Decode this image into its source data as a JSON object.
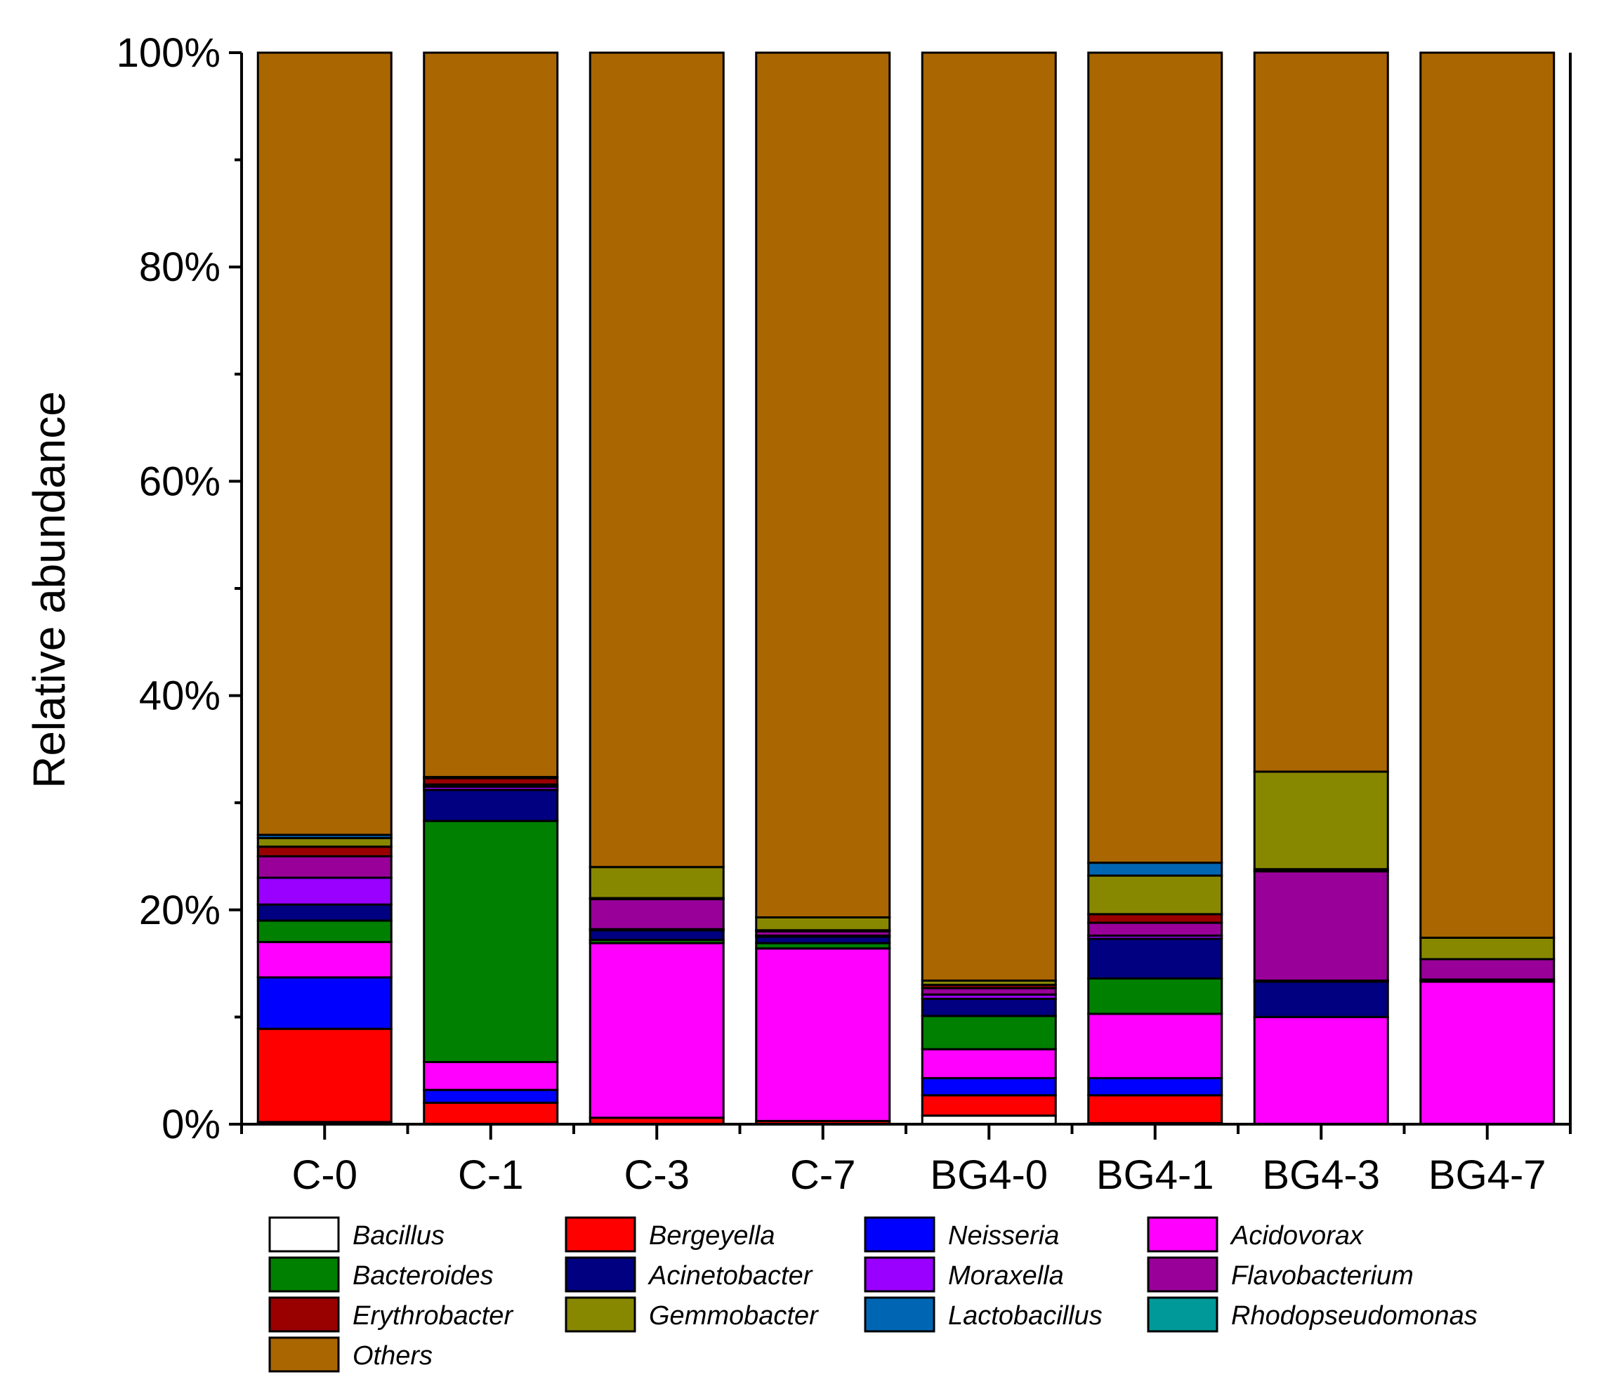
{
  "chart_data": {
    "type": "bar",
    "stacked": true,
    "title": "",
    "xlabel": "",
    "ylabel": "Relative abundance",
    "ylim": [
      0,
      100
    ],
    "y_ticks": [
      "0%",
      "20%",
      "40%",
      "60%",
      "80%",
      "100%"
    ],
    "categories": [
      "C-0",
      "C-1",
      "C-3",
      "C-7",
      "BG4-0",
      "BG4-1",
      "BG4-3",
      "BG4-7"
    ],
    "series": [
      {
        "name": "Bacillus",
        "color": "#FFFFFF",
        "values": [
          0.2,
          0.0,
          0.0,
          0.0,
          0.8,
          0.1,
          0.0,
          0.0
        ]
      },
      {
        "name": "Bergeyella",
        "color": "#FF0000",
        "values": [
          8.7,
          2.0,
          0.6,
          0.3,
          1.9,
          2.6,
          0.0,
          0.0
        ]
      },
      {
        "name": "Neisseria",
        "color": "#0000FF",
        "values": [
          4.8,
          1.2,
          0.0,
          0.0,
          1.6,
          1.6,
          0.0,
          0.0
        ]
      },
      {
        "name": "Acidovorax",
        "color": "#FF00FF",
        "values": [
          3.3,
          2.6,
          16.3,
          16.1,
          2.7,
          6.0,
          10.0,
          13.3
        ]
      },
      {
        "name": "Bacteroides",
        "color": "#008000",
        "values": [
          2.0,
          22.5,
          0.3,
          0.5,
          3.1,
          3.3,
          0.0,
          0.0
        ]
      },
      {
        "name": "Acinetobacter",
        "color": "#000080",
        "values": [
          1.5,
          2.9,
          0.9,
          0.6,
          1.6,
          3.7,
          3.3,
          0.2
        ]
      },
      {
        "name": "Moraxella",
        "color": "#9900FF",
        "values": [
          2.5,
          0.3,
          0.1,
          0.1,
          0.4,
          0.3,
          0.1,
          0.0
        ]
      },
      {
        "name": "Flavobacterium",
        "color": "#990099",
        "values": [
          2.0,
          0.2,
          2.8,
          0.4,
          0.6,
          1.2,
          10.2,
          1.9
        ]
      },
      {
        "name": "Erythrobacter",
        "color": "#990000",
        "values": [
          0.9,
          0.6,
          0.1,
          0.1,
          0.3,
          0.8,
          0.2,
          0.0
        ]
      },
      {
        "name": "Gemmobacter",
        "color": "#888800",
        "values": [
          0.8,
          0.1,
          2.9,
          1.2,
          0.4,
          3.6,
          9.1,
          2.0
        ]
      },
      {
        "name": "Lactobacillus",
        "color": "#0066B3",
        "values": [
          0.3,
          0.0,
          0.0,
          0.0,
          0.0,
          1.2,
          0.0,
          0.0
        ]
      },
      {
        "name": "Rhodopseudomonas",
        "color": "#009999",
        "values": [
          0.0,
          0.0,
          0.0,
          0.0,
          0.0,
          0.0,
          0.0,
          0.0
        ]
      },
      {
        "name": "Others",
        "color": "#AA6600",
        "values": [
          73.0,
          67.6,
          76.0,
          80.7,
          86.6,
          75.6,
          67.1,
          82.6
        ]
      }
    ],
    "legend": {
      "placement": "bottom",
      "columns": 4,
      "entries": [
        "Bacillus",
        "Bergeyella",
        "Neisseria",
        "Acidovorax",
        "Bacteroides",
        "Acinetobacter",
        "Moraxella",
        "Flavobacterium",
        "Erythrobacter",
        "Gemmobacter",
        "Lactobacillus",
        "Rhodopseudomonas",
        "Others"
      ]
    }
  }
}
